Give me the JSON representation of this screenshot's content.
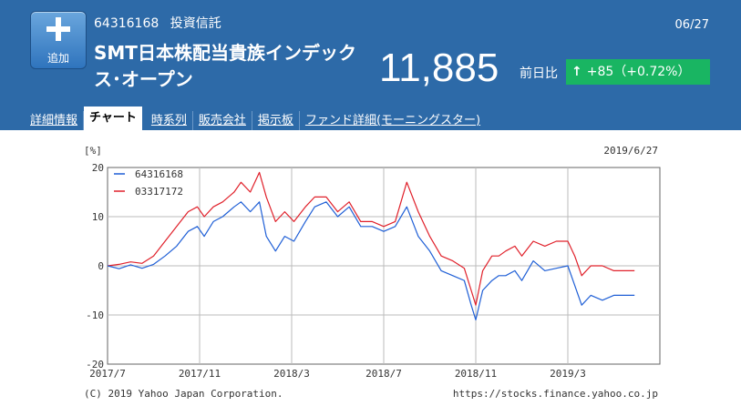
{
  "header": {
    "add_button_label": "追加",
    "fund_code": "64316168",
    "category": "投資信託",
    "date": "06/27",
    "fund_name": "SMT日本株配当貴族インデックス･オープン",
    "price": "11,885",
    "prev_day_label": "前日比",
    "change_text": "+85（+0.72%）",
    "change_color": "#19b562"
  },
  "tabs": [
    {
      "label": "詳細情報",
      "active": false
    },
    {
      "label": "チャート",
      "active": true
    },
    {
      "label": "時系列",
      "active": false
    },
    {
      "label": "販売会社",
      "active": false
    },
    {
      "label": "掲示板",
      "active": false
    },
    {
      "label": "ファンド詳細(モーニングスター)",
      "active": false
    }
  ],
  "chart_data": {
    "type": "line",
    "ylabel": "[%]",
    "date_label": "2019/6/27",
    "ylim": [
      -20,
      20
    ],
    "yticks": [
      "20",
      "10",
      "0",
      "-10",
      "-20"
    ],
    "xticks": [
      "2017/7",
      "2017/11",
      "2018/3",
      "2018/7",
      "2018/11",
      "2019/3"
    ],
    "footer_left": "(C) 2019 Yahoo Japan Corporation.",
    "footer_right": "https://stocks.finance.yahoo.co.jp",
    "x_start": "2017/7",
    "x_end": "2019/6/27",
    "series": [
      {
        "name": "64316168",
        "color": "#1f5fd6",
        "values": [
          [
            0,
            0
          ],
          [
            0.5,
            -0.6
          ],
          [
            1,
            0.2
          ],
          [
            1.5,
            -0.5
          ],
          [
            2,
            0.3
          ],
          [
            2.5,
            2
          ],
          [
            3,
            4
          ],
          [
            3.5,
            7
          ],
          [
            3.9,
            8
          ],
          [
            4.2,
            6
          ],
          [
            4.6,
            9
          ],
          [
            5,
            10
          ],
          [
            5.5,
            12
          ],
          [
            5.8,
            13
          ],
          [
            6.2,
            11
          ],
          [
            6.6,
            13
          ],
          [
            6.9,
            6
          ],
          [
            7.3,
            3
          ],
          [
            7.7,
            6
          ],
          [
            8.1,
            5
          ],
          [
            8.6,
            9
          ],
          [
            9,
            12
          ],
          [
            9.5,
            13
          ],
          [
            10,
            10
          ],
          [
            10.5,
            12
          ],
          [
            11,
            8
          ],
          [
            11.5,
            8
          ],
          [
            12,
            7
          ],
          [
            12.5,
            8
          ],
          [
            13,
            12
          ],
          [
            13.5,
            6
          ],
          [
            14,
            3
          ],
          [
            14.5,
            -1
          ],
          [
            15,
            -2
          ],
          [
            15.5,
            -3
          ],
          [
            15.8,
            -8
          ],
          [
            16,
            -11
          ],
          [
            16.3,
            -5
          ],
          [
            16.7,
            -3
          ],
          [
            17,
            -2
          ],
          [
            17.3,
            -2
          ],
          [
            17.7,
            -1
          ],
          [
            18,
            -3
          ],
          [
            18.5,
            1
          ],
          [
            19,
            -1
          ],
          [
            19.5,
            -0.5
          ],
          [
            20,
            0
          ],
          [
            20.3,
            -4
          ],
          [
            20.6,
            -8
          ],
          [
            21,
            -6
          ],
          [
            21.5,
            -7
          ],
          [
            22,
            -6
          ],
          [
            22.9,
            -6
          ]
        ]
      },
      {
        "name": "03317172",
        "color": "#e0202a",
        "values": [
          [
            0,
            0
          ],
          [
            0.5,
            0.3
          ],
          [
            1,
            0.8
          ],
          [
            1.5,
            0.5
          ],
          [
            2,
            2
          ],
          [
            2.5,
            5
          ],
          [
            3,
            8
          ],
          [
            3.5,
            11
          ],
          [
            3.9,
            12
          ],
          [
            4.2,
            10
          ],
          [
            4.6,
            12
          ],
          [
            5,
            13
          ],
          [
            5.5,
            15
          ],
          [
            5.8,
            17
          ],
          [
            6.2,
            15
          ],
          [
            6.6,
            19
          ],
          [
            6.9,
            14
          ],
          [
            7.3,
            9
          ],
          [
            7.7,
            11
          ],
          [
            8.1,
            9
          ],
          [
            8.6,
            12
          ],
          [
            9,
            14
          ],
          [
            9.5,
            14
          ],
          [
            10,
            11
          ],
          [
            10.5,
            13
          ],
          [
            11,
            9
          ],
          [
            11.5,
            9
          ],
          [
            12,
            8
          ],
          [
            12.5,
            9
          ],
          [
            13,
            17
          ],
          [
            13.5,
            11
          ],
          [
            14,
            6
          ],
          [
            14.5,
            2
          ],
          [
            15,
            1
          ],
          [
            15.5,
            -0.5
          ],
          [
            15.8,
            -5
          ],
          [
            16,
            -8
          ],
          [
            16.3,
            -1
          ],
          [
            16.7,
            2
          ],
          [
            17,
            2
          ],
          [
            17.3,
            3
          ],
          [
            17.7,
            4
          ],
          [
            18,
            2
          ],
          [
            18.5,
            5
          ],
          [
            19,
            4
          ],
          [
            19.5,
            5
          ],
          [
            20,
            5
          ],
          [
            20.3,
            2
          ],
          [
            20.6,
            -2
          ],
          [
            21,
            0
          ],
          [
            21.5,
            0
          ],
          [
            22,
            -1
          ],
          [
            22.9,
            -1
          ]
        ]
      }
    ]
  }
}
